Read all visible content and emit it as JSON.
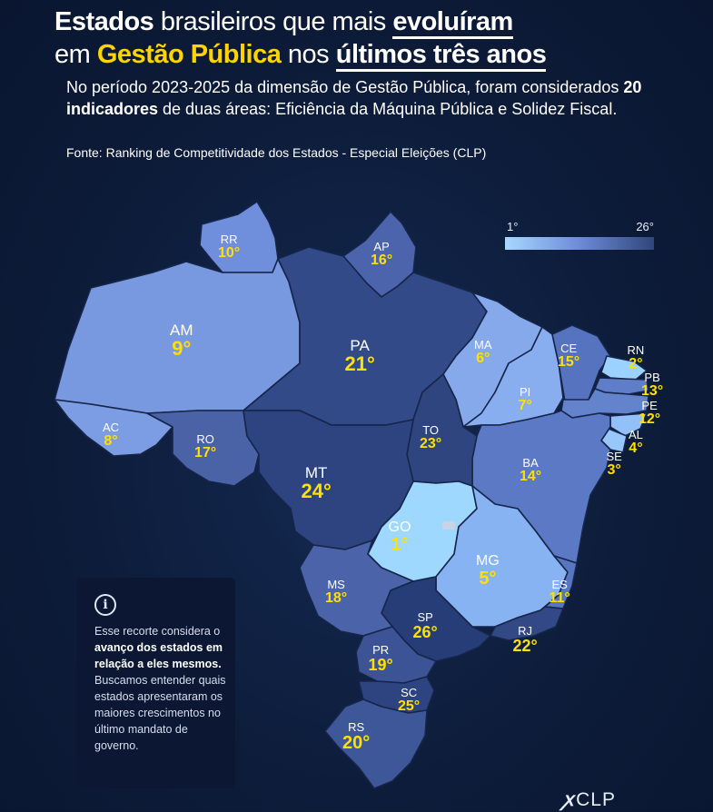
{
  "title": {
    "l1_bold_a": "Estados",
    "l1_reg": " brasileiros que mais ",
    "l1_ul": "evoluíram",
    "l2_reg_a": "em ",
    "l2_hl": "Gestão Pública",
    "l2_reg_b": " nos ",
    "l2_ul": "últimos três anos"
  },
  "subtitle": {
    "a": "No período 2023-2025 da dimensão de Gestão Pública, foram considerados ",
    "bold": "20 indicadores",
    "b": " de duas áreas: Eficiência da Máquina Pública e Solidez Fiscal."
  },
  "source": "Fonte: Ranking de Competitividade dos Estados - Especial Eleições (CLP)",
  "legend": {
    "min": "1°",
    "max": "26°",
    "colors": [
      "#a8d8ff",
      "#6d8ad8",
      "#304779"
    ]
  },
  "states": {
    "RR": {
      "abbr": "RR",
      "rank": "10°"
    },
    "AP": {
      "abbr": "AP",
      "rank": "16°"
    },
    "AM": {
      "abbr": "AM",
      "rank": "9°"
    },
    "PA": {
      "abbr": "PA",
      "rank": "21°"
    },
    "MA": {
      "abbr": "MA",
      "rank": "6°"
    },
    "CE": {
      "abbr": "CE",
      "rank": "15°"
    },
    "RN": {
      "abbr": "RN",
      "rank": "2°"
    },
    "PB": {
      "abbr": "PB",
      "rank": "13°"
    },
    "PE": {
      "abbr": "PE",
      "rank": "12°"
    },
    "AL": {
      "abbr": "AL",
      "rank": "4°"
    },
    "SE": {
      "abbr": "SE",
      "rank": "3°"
    },
    "PI": {
      "abbr": "PI",
      "rank": "7°"
    },
    "AC": {
      "abbr": "AC",
      "rank": "8°"
    },
    "RO": {
      "abbr": "RO",
      "rank": "17°"
    },
    "TO": {
      "abbr": "TO",
      "rank": "23°"
    },
    "BA": {
      "abbr": "BA",
      "rank": "14°"
    },
    "MT": {
      "abbr": "MT",
      "rank": "24°"
    },
    "GO": {
      "abbr": "GO",
      "rank": "1°"
    },
    "MG": {
      "abbr": "MG",
      "rank": "5°"
    },
    "ES": {
      "abbr": "ES",
      "rank": "11°"
    },
    "MS": {
      "abbr": "MS",
      "rank": "18°"
    },
    "SP": {
      "abbr": "SP",
      "rank": "26°"
    },
    "RJ": {
      "abbr": "RJ",
      "rank": "22°"
    },
    "PR": {
      "abbr": "PR",
      "rank": "19°"
    },
    "SC": {
      "abbr": "SC",
      "rank": "25°"
    },
    "RS": {
      "abbr": "RS",
      "rank": "20°"
    }
  },
  "info": {
    "icon": "info-icon",
    "a": "Esse recorte considera o ",
    "bold": "avanço dos estados em relação a eles mesmos.",
    "b": " Buscamos entender quais estados apresentaram os maiores crescimentos no último mandato de governo."
  },
  "logo": {
    "mark": "ꭗ",
    "text": "CLP"
  }
}
